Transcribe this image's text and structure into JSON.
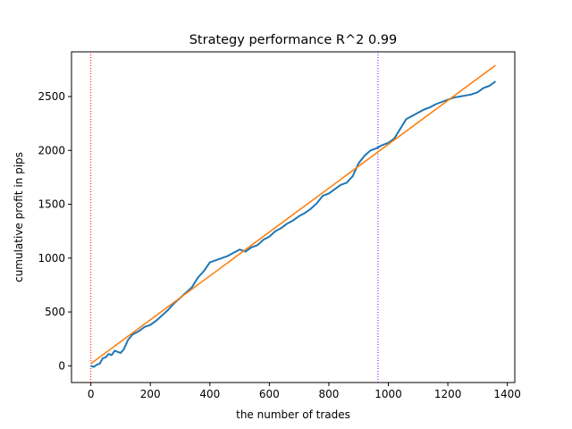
{
  "chart_data": {
    "type": "line",
    "title": "Strategy performance R^2 0.99",
    "xlabel": "the number of trades",
    "ylabel": "cumulative profit in pips",
    "xlim": [
      -65,
      1425
    ],
    "ylim": [
      -155,
      2915
    ],
    "x_ticks": [
      0,
      200,
      400,
      600,
      800,
      1000,
      1200,
      1400
    ],
    "y_ticks": [
      0,
      500,
      1000,
      1500,
      2000,
      2500
    ],
    "grid": false,
    "vertical_lines": [
      {
        "x": 0,
        "color": "#ff0000",
        "style": "dotted"
      },
      {
        "x": 965,
        "color": "#7f00ff",
        "style": "dotted"
      }
    ],
    "series": [
      {
        "color": "#1f77b4",
        "points": [
          [
            0,
            0
          ],
          [
            10,
            -10
          ],
          [
            20,
            10
          ],
          [
            30,
            20
          ],
          [
            40,
            70
          ],
          [
            50,
            80
          ],
          [
            60,
            110
          ],
          [
            70,
            100
          ],
          [
            80,
            140
          ],
          [
            90,
            130
          ],
          [
            100,
            120
          ],
          [
            110,
            150
          ],
          [
            125,
            240
          ],
          [
            140,
            290
          ],
          [
            160,
            320
          ],
          [
            180,
            360
          ],
          [
            200,
            380
          ],
          [
            220,
            420
          ],
          [
            240,
            470
          ],
          [
            260,
            520
          ],
          [
            280,
            580
          ],
          [
            300,
            630
          ],
          [
            320,
            680
          ],
          [
            340,
            730
          ],
          [
            360,
            820
          ],
          [
            380,
            880
          ],
          [
            400,
            960
          ],
          [
            420,
            980
          ],
          [
            440,
            1000
          ],
          [
            460,
            1020
          ],
          [
            480,
            1050
          ],
          [
            500,
            1080
          ],
          [
            520,
            1060
          ],
          [
            540,
            1100
          ],
          [
            560,
            1120
          ],
          [
            580,
            1170
          ],
          [
            600,
            1200
          ],
          [
            620,
            1250
          ],
          [
            640,
            1280
          ],
          [
            660,
            1320
          ],
          [
            680,
            1350
          ],
          [
            700,
            1390
          ],
          [
            720,
            1420
          ],
          [
            740,
            1460
          ],
          [
            760,
            1510
          ],
          [
            780,
            1580
          ],
          [
            800,
            1600
          ],
          [
            820,
            1640
          ],
          [
            840,
            1680
          ],
          [
            860,
            1700
          ],
          [
            880,
            1760
          ],
          [
            900,
            1880
          ],
          [
            920,
            1950
          ],
          [
            940,
            2000
          ],
          [
            960,
            2020
          ],
          [
            980,
            2050
          ],
          [
            1000,
            2070
          ],
          [
            1020,
            2110
          ],
          [
            1040,
            2200
          ],
          [
            1060,
            2290
          ],
          [
            1080,
            2320
          ],
          [
            1100,
            2350
          ],
          [
            1120,
            2380
          ],
          [
            1140,
            2400
          ],
          [
            1160,
            2430
          ],
          [
            1180,
            2450
          ],
          [
            1200,
            2470
          ],
          [
            1220,
            2490
          ],
          [
            1240,
            2500
          ],
          [
            1260,
            2510
          ],
          [
            1280,
            2520
          ],
          [
            1300,
            2540
          ],
          [
            1320,
            2580
          ],
          [
            1340,
            2600
          ],
          [
            1360,
            2640
          ]
        ]
      },
      {
        "color": "#ff7f0e",
        "points": [
          [
            0,
            20
          ],
          [
            1360,
            2790
          ]
        ]
      }
    ]
  }
}
